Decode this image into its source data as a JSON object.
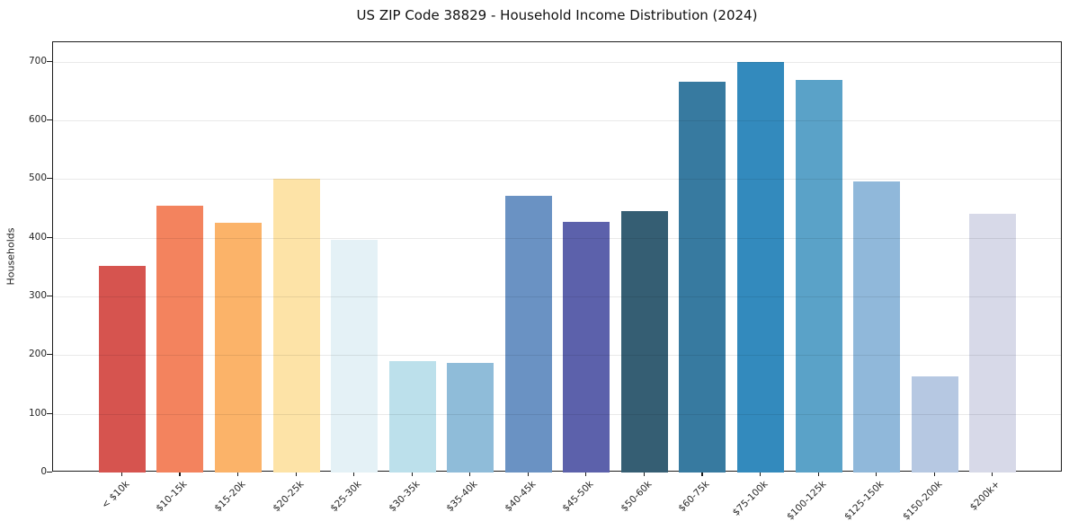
{
  "title": "US ZIP Code 38829 - Household Income Distribution (2024)",
  "chart_data": {
    "type": "bar",
    "title": "US ZIP Code 38829 - Household Income Distribution (2024)",
    "xlabel": "",
    "ylabel": "Households",
    "categories": [
      "< $10k",
      "$10-15k",
      "$15-20k",
      "$20-25k",
      "$25-30k",
      "$30-35k",
      "$35-40k",
      "$40-45k",
      "$45-50k",
      "$50-60k",
      "$60-75k",
      "$75-100k",
      "$100-125k",
      "$125-150k",
      "$150-200k",
      "$200k+"
    ],
    "values": [
      352,
      454,
      425,
      500,
      396,
      189,
      187,
      471,
      427,
      445,
      665,
      700,
      668,
      496,
      164,
      440
    ],
    "bar_colors": [
      "#d6544f",
      "#f3835e",
      "#fbb369",
      "#fde3a7",
      "#e4f1f6",
      "#bce0eb",
      "#8fbcd9",
      "#6a92c3",
      "#5c61ab",
      "#355e73",
      "#377aa0",
      "#338abd",
      "#5aa2c8",
      "#90b8da",
      "#b6c8e2",
      "#d7d9e8"
    ],
    "ylim": [
      0,
      733
    ],
    "yticks": [
      0,
      100,
      200,
      300,
      400,
      500,
      600,
      700
    ],
    "grid": "horizontal",
    "legend": "none",
    "background_color": "#ffffff",
    "spine_color": "#1c1c1c",
    "x_tick_rotation_deg": 45
  }
}
